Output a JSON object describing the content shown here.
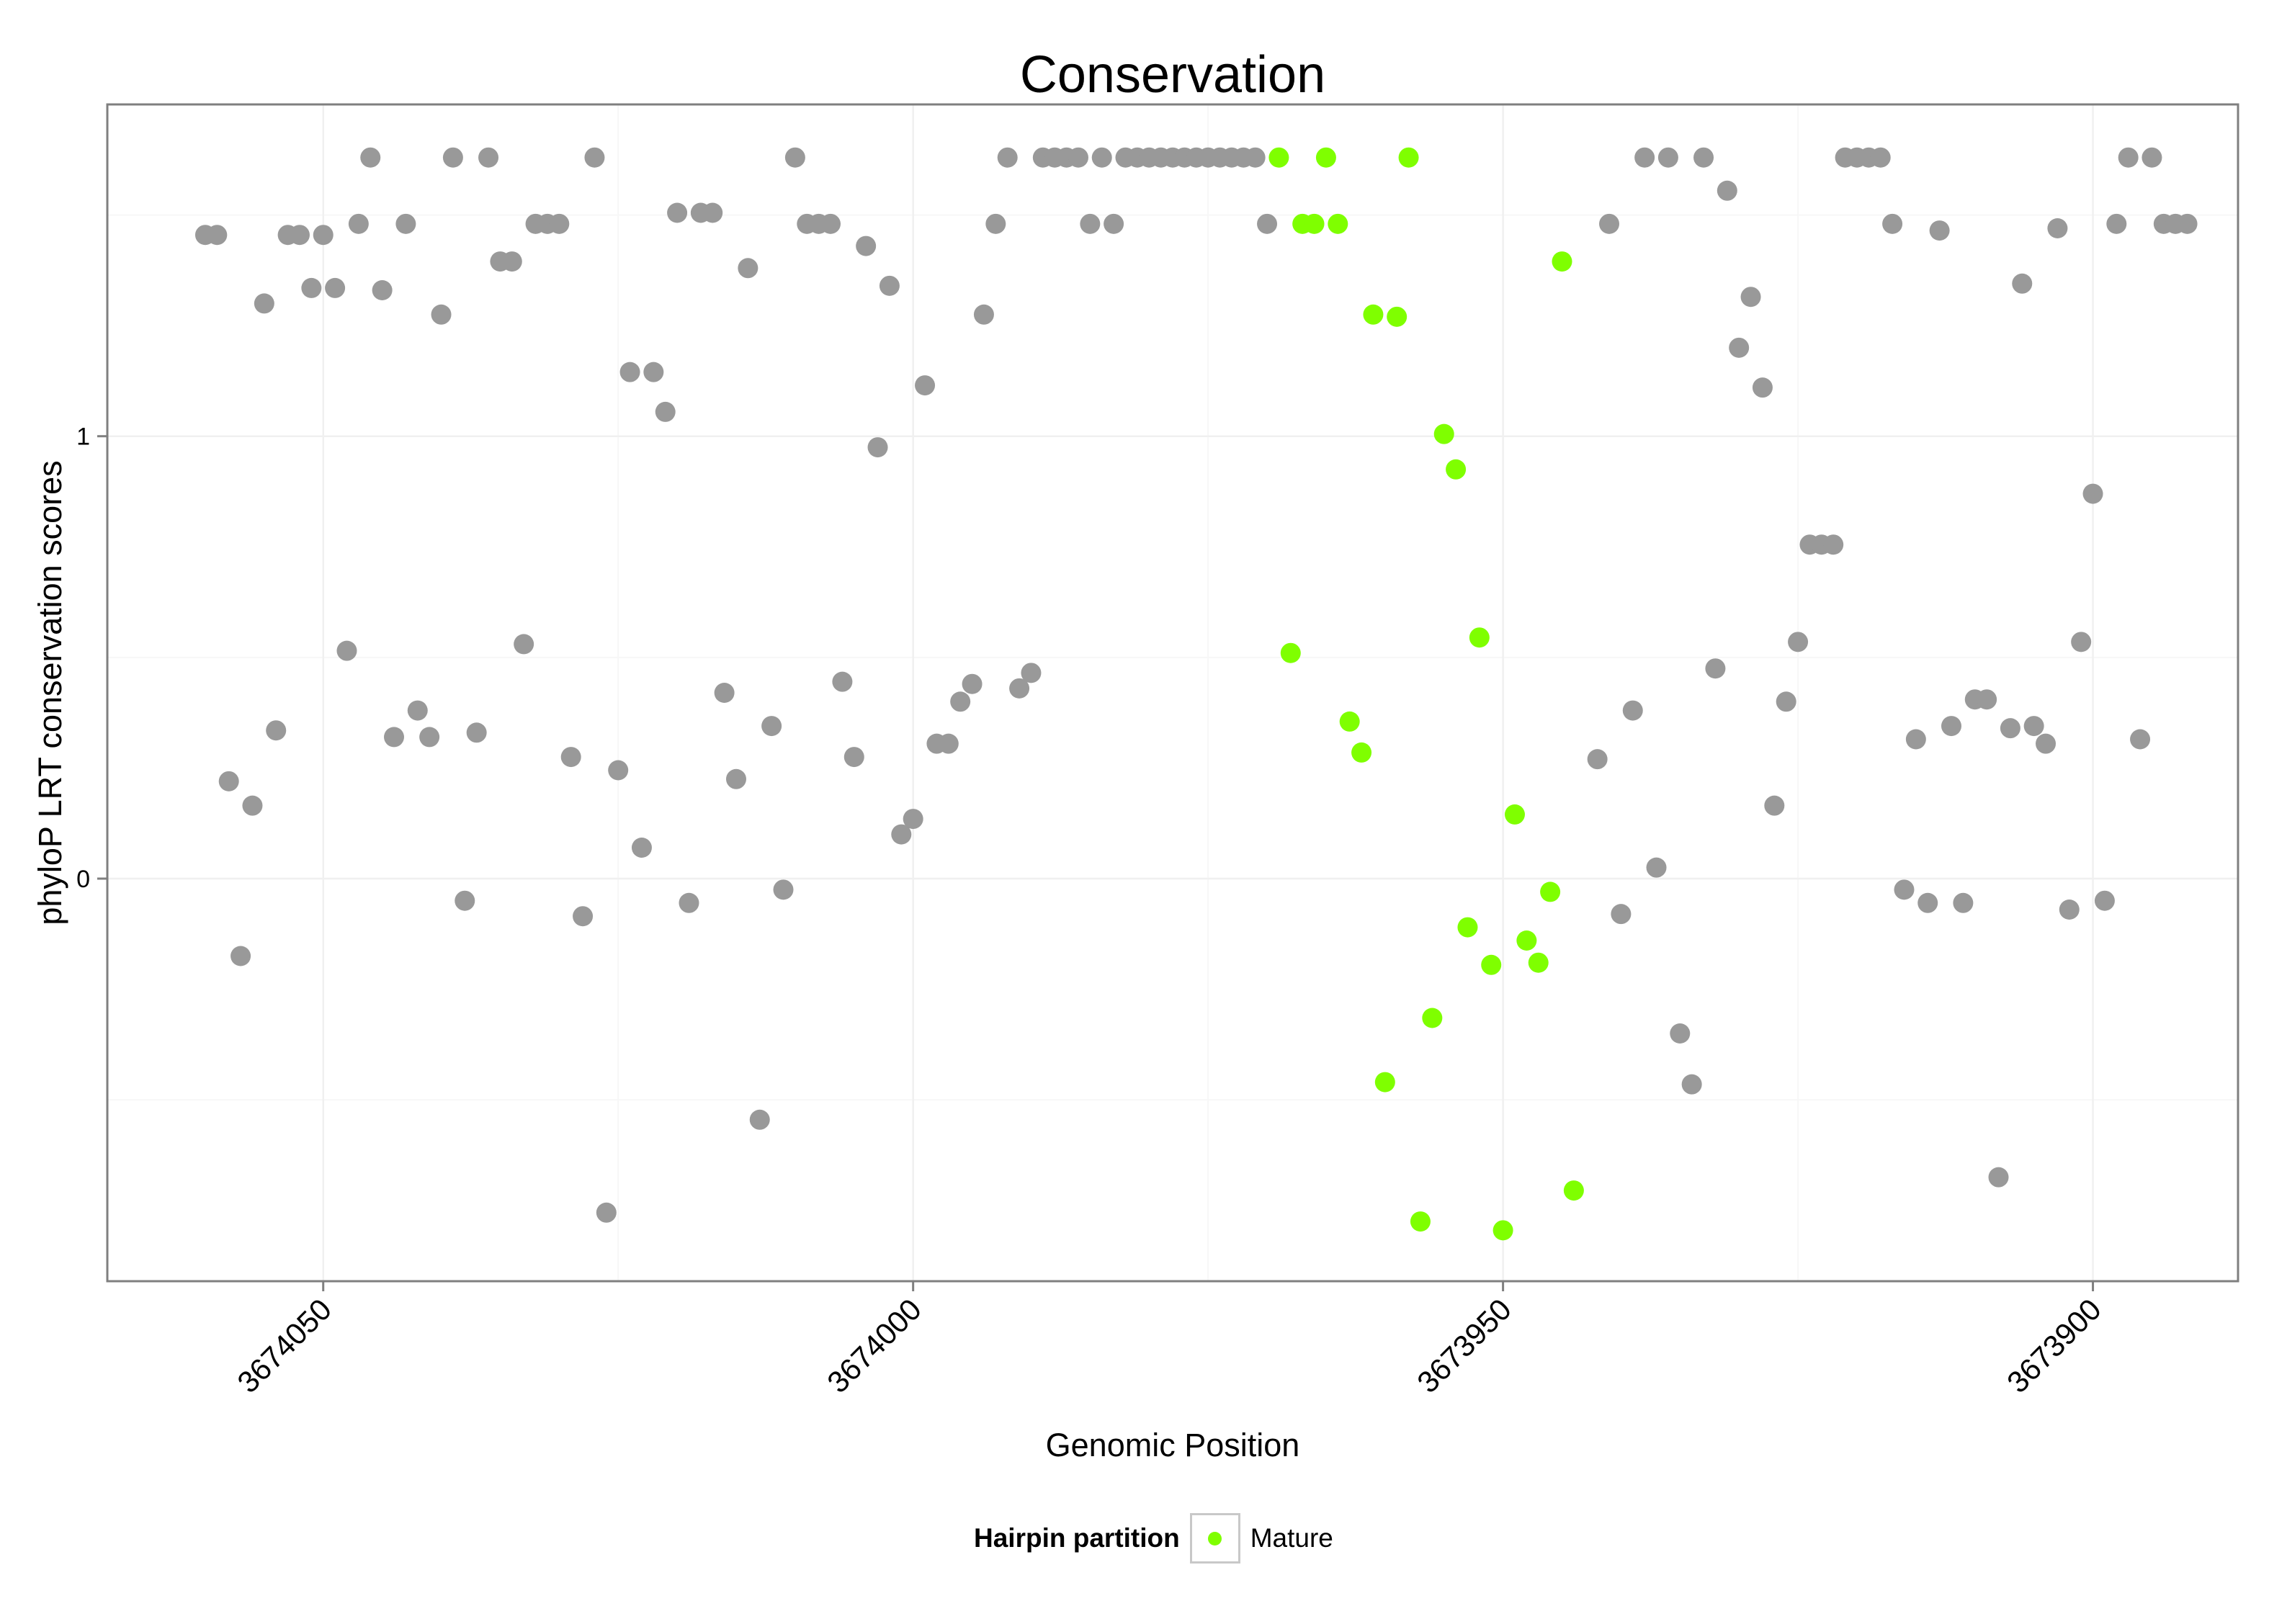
{
  "chart_data": {
    "type": "scatter",
    "title": "Conservation",
    "xlabel": "Genomic Position",
    "ylabel": "phyloP LRT conservation scores",
    "x_reversed": true,
    "xlim": [
      3674068.3,
      3673887.7
    ],
    "ylim": [
      -0.91,
      1.75
    ],
    "x_ticks": [
      "3674050",
      "3674000",
      "3673950",
      "3673900"
    ],
    "x_tick_values": [
      3674050,
      3674000,
      3673950,
      3673900
    ],
    "y_ticks": [
      "0",
      "1"
    ],
    "y_tick_values": [
      0,
      1
    ],
    "grid": true,
    "legend": {
      "title": "Hairpin partition",
      "position": "bottom"
    },
    "series": [
      {
        "name": "",
        "color": "#999999",
        "points": [
          [
            3674060,
            1.455
          ],
          [
            3674059,
            1.455
          ],
          [
            3674058,
            0.22
          ],
          [
            3674057,
            -0.175
          ],
          [
            3674056,
            0.165
          ],
          [
            3674055,
            1.3
          ],
          [
            3674054,
            0.335
          ],
          [
            3674053,
            1.455
          ],
          [
            3674052,
            1.455
          ],
          [
            3674051,
            1.335
          ],
          [
            3674050,
            1.455
          ],
          [
            3674049,
            1.335
          ],
          [
            3674048,
            0.515
          ],
          [
            3674047,
            1.48
          ],
          [
            3674046,
            1.63
          ],
          [
            3674045,
            1.33
          ],
          [
            3674044,
            0.32
          ],
          [
            3674043,
            1.48
          ],
          [
            3674042,
            0.38
          ],
          [
            3674041,
            0.32
          ],
          [
            3674040,
            1.275
          ],
          [
            3674039,
            1.63
          ],
          [
            3674038,
            -0.05
          ],
          [
            3674037,
            0.33
          ],
          [
            3674036,
            1.63
          ],
          [
            3674035,
            1.395
          ],
          [
            3674034,
            1.395
          ],
          [
            3674033,
            0.53
          ],
          [
            3674032,
            1.48
          ],
          [
            3674031,
            1.48
          ],
          [
            3674030,
            1.48
          ],
          [
            3674029,
            0.275
          ],
          [
            3674028,
            -0.085
          ],
          [
            3674027,
            1.63
          ],
          [
            3674026,
            -0.755
          ],
          [
            3674025,
            0.245
          ],
          [
            3674024,
            1.145
          ],
          [
            3674023,
            0.07
          ],
          [
            3674022,
            1.145
          ],
          [
            3674021,
            1.055
          ],
          [
            3674020,
            1.505
          ],
          [
            3674019,
            -0.055
          ],
          [
            3674018,
            1.505
          ],
          [
            3674017,
            1.505
          ],
          [
            3674016,
            0.42
          ],
          [
            3674015,
            0.225
          ],
          [
            3674014,
            1.38
          ],
          [
            3674013,
            -0.545
          ],
          [
            3674012,
            0.345
          ],
          [
            3674011,
            -0.025
          ],
          [
            3674010,
            1.63
          ],
          [
            3674009,
            1.48
          ],
          [
            3674008,
            1.48
          ],
          [
            3674007,
            1.48
          ],
          [
            3674006,
            0.445
          ],
          [
            3674005,
            0.275
          ],
          [
            3674004,
            1.43
          ],
          [
            3674003,
            0.975
          ],
          [
            3674002,
            1.34
          ],
          [
            3674001,
            0.1
          ],
          [
            3674000,
            0.135
          ],
          [
            3673999,
            1.115
          ],
          [
            3673998,
            0.305
          ],
          [
            3673997,
            0.305
          ],
          [
            3673996,
            0.4
          ],
          [
            3673995,
            0.44
          ],
          [
            3673994,
            1.275
          ],
          [
            3673993,
            1.48
          ],
          [
            3673992,
            1.63
          ],
          [
            3673991,
            0.43
          ],
          [
            3673990,
            0.465
          ],
          [
            3673989,
            1.63
          ],
          [
            3673988,
            1.63
          ],
          [
            3673987,
            1.63
          ],
          [
            3673986,
            1.63
          ],
          [
            3673985,
            1.48
          ],
          [
            3673984,
            1.63
          ],
          [
            3673983,
            1.48
          ],
          [
            3673982,
            1.63
          ],
          [
            3673981,
            1.63
          ],
          [
            3673980,
            1.63
          ],
          [
            3673979,
            1.63
          ],
          [
            3673978,
            1.63
          ],
          [
            3673977,
            1.63
          ],
          [
            3673976,
            1.63
          ],
          [
            3673975,
            1.63
          ],
          [
            3673974,
            1.63
          ],
          [
            3673973,
            1.63
          ],
          [
            3673972,
            1.63
          ],
          [
            3673971,
            1.63
          ],
          [
            3673970,
            1.48
          ],
          [
            3673942,
            0.27
          ],
          [
            3673941,
            1.48
          ],
          [
            3673940,
            -0.08
          ],
          [
            3673939,
            0.38
          ],
          [
            3673938,
            1.63
          ],
          [
            3673937,
            0.025
          ],
          [
            3673936,
            1.63
          ],
          [
            3673935,
            -0.35
          ],
          [
            3673934,
            -0.465
          ],
          [
            3673933,
            1.63
          ],
          [
            3673932,
            0.475
          ],
          [
            3673931,
            1.555
          ],
          [
            3673930,
            1.2
          ],
          [
            3673929,
            1.315
          ],
          [
            3673928,
            1.11
          ],
          [
            3673927,
            0.165
          ],
          [
            3673926,
            0.4
          ],
          [
            3673925,
            0.535
          ],
          [
            3673924,
            0.755
          ],
          [
            3673923,
            0.755
          ],
          [
            3673922,
            0.755
          ],
          [
            3673921,
            1.63
          ],
          [
            3673920,
            1.63
          ],
          [
            3673919,
            1.63
          ],
          [
            3673918,
            1.63
          ],
          [
            3673917,
            1.48
          ],
          [
            3673916,
            -0.025
          ],
          [
            3673915,
            0.315
          ],
          [
            3673914,
            -0.055
          ],
          [
            3673913,
            1.465
          ],
          [
            3673912,
            0.345
          ],
          [
            3673911,
            -0.055
          ],
          [
            3673910,
            0.405
          ],
          [
            3673909,
            0.405
          ],
          [
            3673908,
            -0.675
          ],
          [
            3673907,
            0.34
          ],
          [
            3673906,
            1.345
          ],
          [
            3673905,
            0.345
          ],
          [
            3673904,
            0.305
          ],
          [
            3673903,
            1.47
          ],
          [
            3673902,
            -0.07
          ],
          [
            3673901,
            0.535
          ],
          [
            3673900,
            0.87
          ],
          [
            3673899,
            -0.05
          ],
          [
            3673898,
            1.48
          ],
          [
            3673897,
            1.63
          ],
          [
            3673896,
            0.315
          ],
          [
            3673895,
            1.63
          ],
          [
            3673894,
            1.48
          ],
          [
            3673893,
            1.48
          ],
          [
            3673892,
            1.48
          ]
        ]
      },
      {
        "name": "Mature",
        "color": "#7fff00",
        "points": [
          [
            3673969,
            1.63
          ],
          [
            3673968,
            0.51
          ],
          [
            3673967,
            1.48
          ],
          [
            3673966,
            1.48
          ],
          [
            3673965,
            1.63
          ],
          [
            3673964,
            1.48
          ],
          [
            3673963,
            0.355
          ],
          [
            3673962,
            0.285
          ],
          [
            3673961,
            1.275
          ],
          [
            3673960,
            -0.46
          ],
          [
            3673959,
            1.27
          ],
          [
            3673958,
            1.63
          ],
          [
            3673957,
            -0.775
          ],
          [
            3673956,
            -0.315
          ],
          [
            3673955,
            1.005
          ],
          [
            3673954,
            0.925
          ],
          [
            3673953,
            -0.11
          ],
          [
            3673952,
            0.545
          ],
          [
            3673951,
            -0.195
          ],
          [
            3673950,
            -0.795
          ],
          [
            3673949,
            0.145
          ],
          [
            3673948,
            -0.14
          ],
          [
            3673947,
            -0.19
          ],
          [
            3673946,
            -0.03
          ],
          [
            3673945,
            1.395
          ],
          [
            3673944,
            -0.705
          ]
        ]
      }
    ]
  }
}
